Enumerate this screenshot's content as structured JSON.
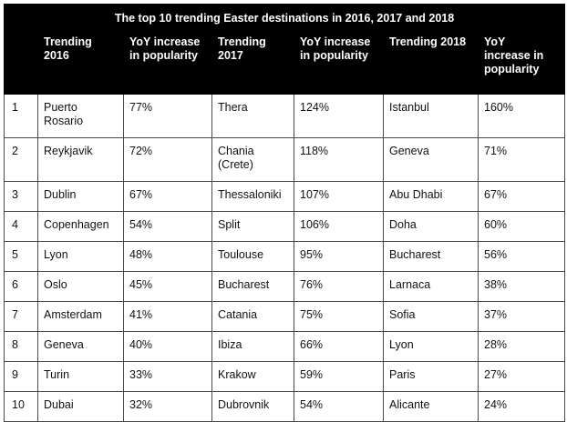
{
  "title": "The top 10 trending Easter destinations in 2016, 2017 and 2018",
  "headers": [
    "",
    "Trending\n2016",
    "YoY increase\nin popularity",
    "Trending\n2017",
    "YoY increase\nin popularity",
    "Trending 2018",
    "YoY\nincrease in\npopularity"
  ],
  "rows": [
    [
      "1",
      "Puerto\nRosario",
      "77%",
      "Thera",
      "124%",
      "Istanbul",
      "160%"
    ],
    [
      "2",
      "Reykjavik",
      "72%",
      "Chania\n(Crete)",
      "118%",
      "Geneva",
      "71%"
    ],
    [
      "3",
      "Dublin",
      "67%",
      "Thessaloniki",
      "107%",
      "Abu Dhabi",
      "67%"
    ],
    [
      "4",
      "Copenhagen",
      "54%",
      "Split",
      "106%",
      "Doha",
      "60%"
    ],
    [
      "5",
      "Lyon",
      "48%",
      "Toulouse",
      "95%",
      "Bucharest",
      "56%"
    ],
    [
      "6",
      "Oslo",
      "45%",
      "Bucharest",
      "76%",
      "Larnaca",
      "38%"
    ],
    [
      "7",
      "Amsterdam",
      "41%",
      "Catania",
      "75%",
      "Sofia",
      "37%"
    ],
    [
      "8",
      "Geneva",
      "40%",
      "Ibiza",
      "66%",
      "Lyon",
      "28%"
    ],
    [
      "9",
      "Turin",
      "33%",
      "Krakow",
      "59%",
      "Paris",
      "27%"
    ],
    [
      "10",
      "Dubai",
      "32%",
      "Dubrovnik",
      "54%",
      "Alicante",
      "24%"
    ]
  ]
}
